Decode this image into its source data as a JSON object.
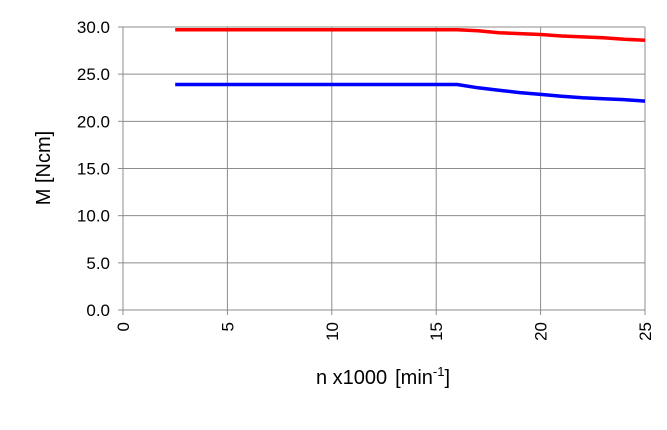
{
  "chart_data": {
    "type": "line",
    "xlabel": "n x1000",
    "xlabel_unit": "[min",
    "xlabel_unit_exp": "-1",
    "xlabel_unit_close": "]",
    "ylabel": "M [Ncm]",
    "xlim": [
      0,
      25
    ],
    "ylim": [
      0,
      30
    ],
    "x_ticks": [
      {
        "value": 0,
        "label": "0"
      },
      {
        "value": 5,
        "label": "5"
      },
      {
        "value": 10,
        "label": "10"
      },
      {
        "value": 15,
        "label": "15"
      },
      {
        "value": 20,
        "label": "20"
      },
      {
        "value": 25,
        "label": "25"
      }
    ],
    "y_ticks": [
      {
        "value": 0,
        "label": "0.0"
      },
      {
        "value": 5,
        "label": "5.0"
      },
      {
        "value": 10,
        "label": "10.0"
      },
      {
        "value": 15,
        "label": "15.0"
      },
      {
        "value": 20,
        "label": "20.0"
      },
      {
        "value": 25,
        "label": "25.0"
      },
      {
        "value": 30,
        "label": "30.0"
      }
    ],
    "grid": true,
    "series": [
      {
        "color": "#ff0000",
        "points": [
          [
            2.5,
            29.7
          ],
          [
            16.0,
            29.7
          ],
          [
            17.0,
            29.6
          ],
          [
            18.0,
            29.4
          ],
          [
            19.0,
            29.3
          ],
          [
            20.0,
            29.2
          ],
          [
            21.0,
            29.05
          ],
          [
            22.0,
            28.95
          ],
          [
            23.0,
            28.85
          ],
          [
            24.0,
            28.7
          ],
          [
            25.0,
            28.6
          ]
        ]
      },
      {
        "color": "#0000ff",
        "points": [
          [
            2.5,
            23.9
          ],
          [
            16.0,
            23.9
          ],
          [
            17.0,
            23.55
          ],
          [
            18.0,
            23.3
          ],
          [
            19.0,
            23.05
          ],
          [
            20.0,
            22.85
          ],
          [
            21.0,
            22.65
          ],
          [
            22.0,
            22.5
          ],
          [
            23.0,
            22.4
          ],
          [
            24.0,
            22.3
          ],
          [
            25.0,
            22.15
          ]
        ]
      }
    ]
  }
}
